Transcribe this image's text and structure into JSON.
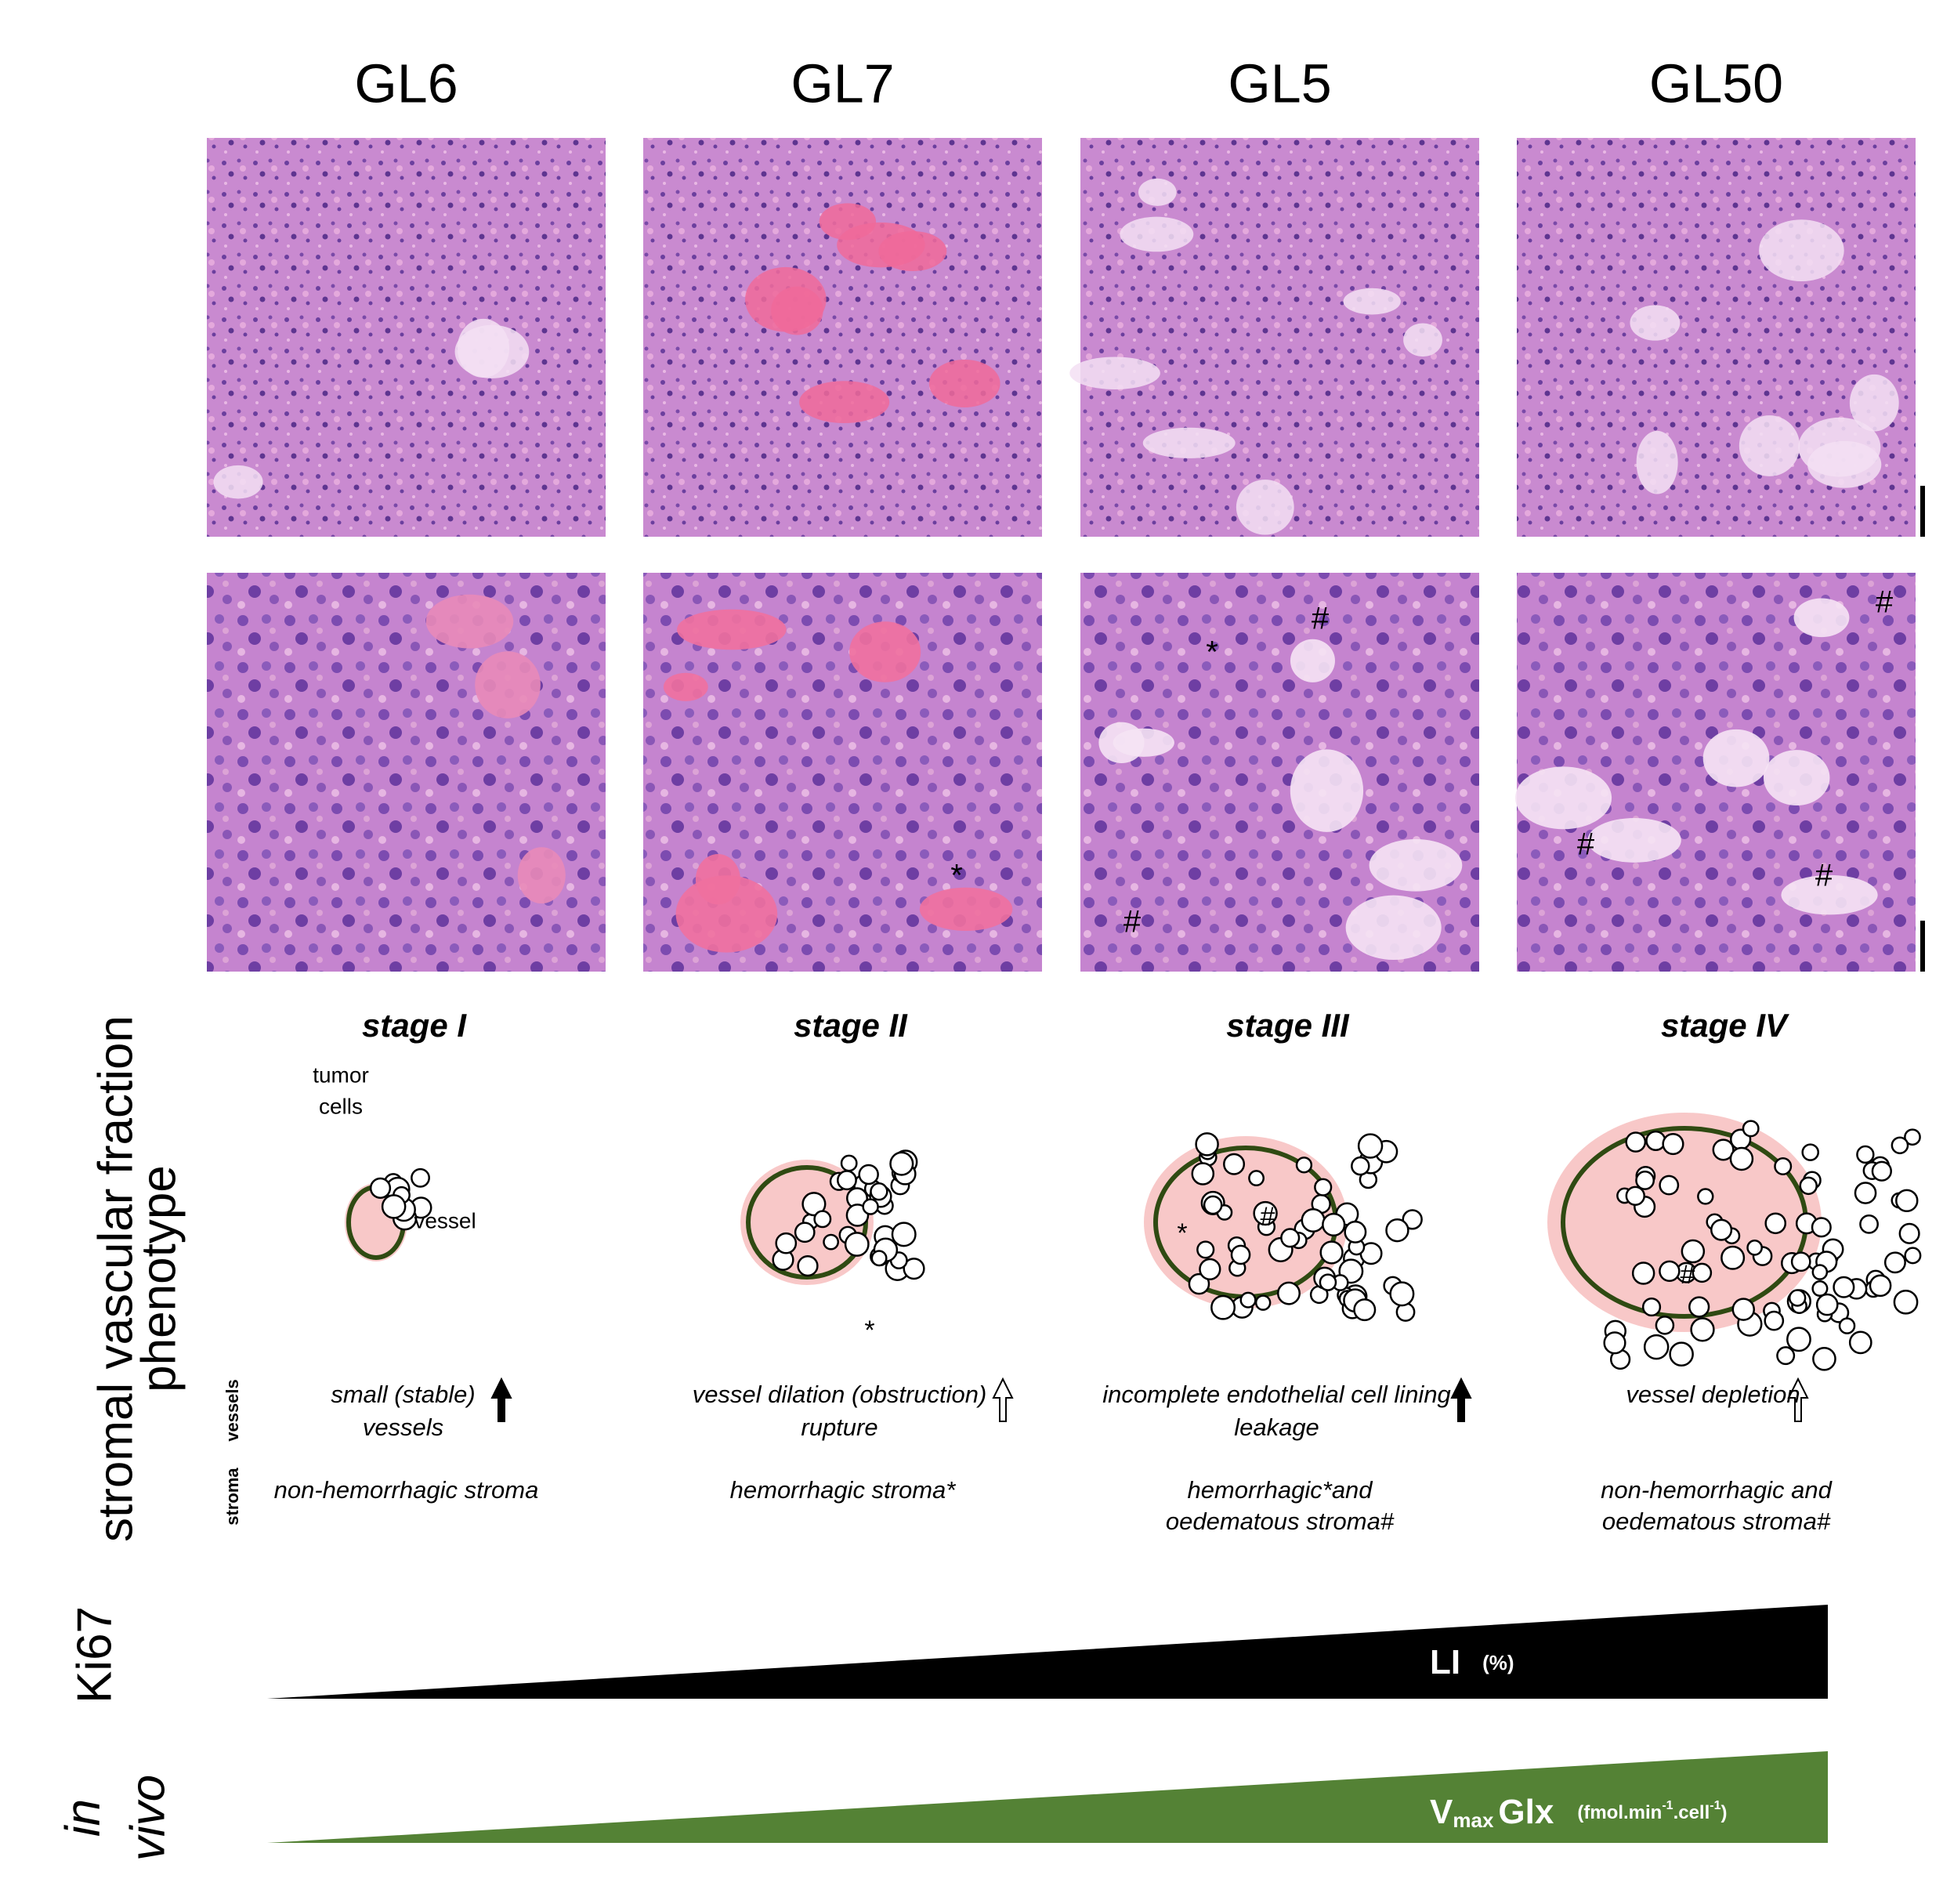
{
  "columns": [
    {
      "label": "GL6",
      "stage": "stage I",
      "vessel_lines": [
        "small (stable)",
        "vessels"
      ],
      "stroma_lines": [
        "non-hemorrhagic stroma"
      ]
    },
    {
      "label": "GL7",
      "stage": "stage II",
      "vessel_lines": [
        "vessel dilation (obstruction)",
        "rupture"
      ],
      "stroma_lines": [
        "hemorrhagic stroma*"
      ]
    },
    {
      "label": "GL5",
      "stage": "stage III",
      "vessel_lines": [
        "incomplete endothelial cell lining",
        "leakage"
      ],
      "stroma_lines": [
        "hemorrhagic*and",
        "oedematous stroma#"
      ]
    },
    {
      "label": "GL50",
      "stage": "stage IV",
      "vessel_lines": [
        "vessel depletion"
      ],
      "stroma_lines": [
        "non-hemorrhagic and",
        "oedematous stroma#"
      ]
    }
  ],
  "image_markers": [
    "*",
    "#",
    "*",
    "#",
    "#",
    "#",
    "#"
  ],
  "sketch_markers": [
    "*",
    "#",
    "*",
    "#"
  ],
  "sketch_labels": {
    "tumor": "tumor",
    "cells": "cells",
    "vessel": "vessel"
  },
  "side_labels": {
    "phenotype_1": "stromal vascular fraction",
    "phenotype_2": "phenotype",
    "stroma": "stroma",
    "vessels": "vessels",
    "ki67": "Ki67",
    "in": "in",
    "vivo": "vivo"
  },
  "gradients": {
    "li": "LI",
    "li_unit": "(%)",
    "v": "V",
    "max": "max",
    "glx": "Glx",
    "unit_a": "(fmol.min",
    "exp_a": "-1",
    "unit_b": ".cell",
    "exp_b": "-1",
    "unit_c": ")"
  }
}
